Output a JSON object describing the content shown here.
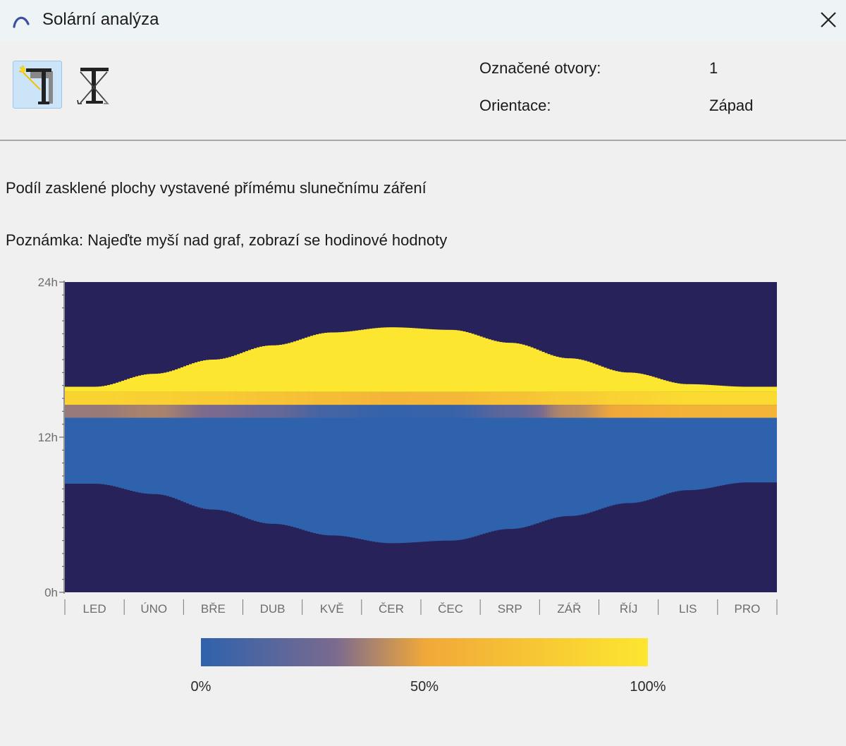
{
  "window": {
    "title": "Solární analýza",
    "app_icon": "arc-logo-icon",
    "close_icon": "close-icon"
  },
  "toolbar": {
    "buttons": [
      {
        "icon": "sun-window-icon",
        "active": true
      },
      {
        "icon": "shadow-window-icon",
        "active": false
      }
    ]
  },
  "info": {
    "marked_openings_label": "Označené otvory:",
    "marked_openings_value": "1",
    "orientation_label": "Orientace:",
    "orientation_value": "Západ"
  },
  "description": {
    "title": "Podíl zasklené plochy vystavené přímému slunečnímu záření",
    "note": "Poznámka: Najeďte myší nad graf, zobrazí se hodinové hodnoty"
  },
  "chart_data": {
    "type": "heatmap",
    "title": "",
    "xlabel": "",
    "ylabel": "",
    "x_categories": [
      "LED",
      "ÚNO",
      "BŘE",
      "DUB",
      "KVĚ",
      "ČER",
      "ČEC",
      "SRP",
      "ZÁŘ",
      "ŘÍJ",
      "LIS",
      "PRO"
    ],
    "y_ticks": [
      "24h",
      "12h",
      "0h"
    ],
    "ylim": [
      0,
      24
    ],
    "grid": false,
    "sunrise_h": [
      8.4,
      7.6,
      6.4,
      5.3,
      4.4,
      3.8,
      4.0,
      4.9,
      5.9,
      6.9,
      7.9,
      8.5
    ],
    "sunset_h": [
      15.9,
      16.9,
      18.0,
      19.1,
      20.1,
      20.5,
      20.3,
      19.3,
      18.1,
      17.0,
      16.1,
      15.9
    ],
    "bands": [
      {
        "from_h": 13.5,
        "to_h": 14.5,
        "values": [
          0.35,
          0.38,
          0.3,
          0.22,
          0.08,
          0.02,
          0.04,
          0.18,
          0.4,
          0.52,
          0.58,
          0.6
        ]
      },
      {
        "from_h": 14.5,
        "to_h": 15.5,
        "values": [
          0.85,
          0.82,
          0.78,
          0.72,
          0.66,
          0.6,
          0.62,
          0.7,
          0.78,
          0.85,
          0.9,
          0.9
        ]
      },
      {
        "from_h": 15.5,
        "to_h": 24,
        "values": [
          1,
          1,
          1,
          1,
          1,
          1,
          1,
          1,
          1,
          1,
          1,
          1
        ]
      }
    ],
    "morning_value": 0,
    "colorscale": {
      "stops": [
        "#2f62ad",
        "#7a6a8f",
        "#f1a83a",
        "#fde62f"
      ],
      "night_color": "#28225a",
      "labels": [
        "0%",
        "50%",
        "100%"
      ]
    }
  }
}
